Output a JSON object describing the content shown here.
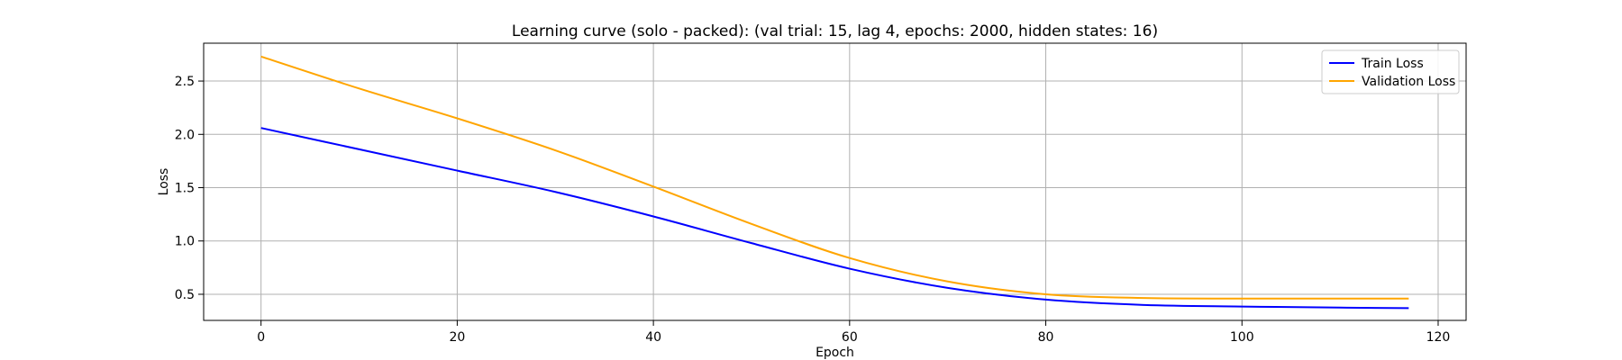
{
  "chart_data": {
    "type": "line",
    "title": "Learning curve (solo - packed): (val trial: 15, lag 4, epochs: 2000, hidden states: 16)",
    "xlabel": "Epoch",
    "ylabel": "Loss",
    "xlim": [
      -5.85,
      122.85
    ],
    "ylim": [
      0.255,
      2.855
    ],
    "xticks": [
      0,
      20,
      40,
      60,
      80,
      100,
      120
    ],
    "yticks": [
      0.5,
      1.0,
      1.5,
      2.0,
      2.5
    ],
    "xtick_labels": [
      "0",
      "20",
      "40",
      "60",
      "80",
      "100",
      "120"
    ],
    "ytick_labels": [
      "0.5",
      "1.0",
      "1.5",
      "2.0",
      "2.5"
    ],
    "grid": true,
    "legend_position": "top-right",
    "series": [
      {
        "name": "Train Loss",
        "color": "#0000ff",
        "x": [
          0,
          10,
          20,
          30,
          40,
          50,
          60,
          70,
          80,
          90,
          100,
          110,
          117
        ],
        "y": [
          2.06,
          1.86,
          1.66,
          1.46,
          1.23,
          0.98,
          0.74,
          0.56,
          0.45,
          0.4,
          0.385,
          0.375,
          0.37
        ]
      },
      {
        "name": "Validation Loss",
        "color": "#ffa500",
        "x": [
          0,
          10,
          20,
          30,
          40,
          50,
          60,
          70,
          80,
          90,
          100,
          110,
          117
        ],
        "y": [
          2.73,
          2.43,
          2.15,
          1.85,
          1.51,
          1.16,
          0.84,
          0.62,
          0.5,
          0.465,
          0.46,
          0.46,
          0.46
        ]
      }
    ]
  }
}
